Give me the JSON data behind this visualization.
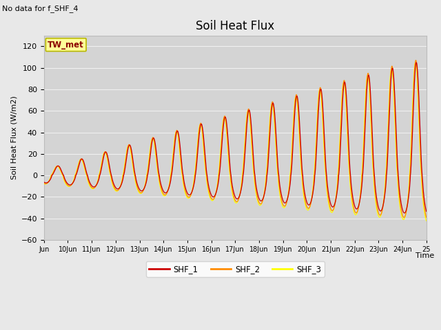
{
  "title": "Soil Heat Flux",
  "title_fontsize": 12,
  "no_data_text": "No data for f_SHF_4",
  "ylabel": "Soil Heat Flux (W/m2)",
  "xlabel": "Time",
  "ylim": [
    -60,
    130
  ],
  "yticks": [
    -60,
    -40,
    -20,
    0,
    20,
    40,
    60,
    80,
    100,
    120
  ],
  "xtick_labels": [
    "Jun",
    "10Jun",
    "11Jun",
    "12Jun",
    "13Jun",
    "14Jun",
    "15Jun",
    "16Jun",
    "17Jun",
    "18Jun",
    "19Jun",
    "20Jun",
    "21Jun",
    "22Jun",
    "23Jun",
    "24Jun",
    "25"
  ],
  "legend_entries": [
    "SHF_1",
    "SHF_2",
    "SHF_3"
  ],
  "line_colors": [
    "#cc0000",
    "#ff8c00",
    "#ffff00"
  ],
  "box_label": "TW_met",
  "box_facecolor": "#ffff99",
  "box_edgecolor": "#b8b800",
  "bg_color": "#e8e8e8",
  "plot_bg_color": "#d4d4d4",
  "grid_color": "#f0f0f0",
  "num_days": 16
}
